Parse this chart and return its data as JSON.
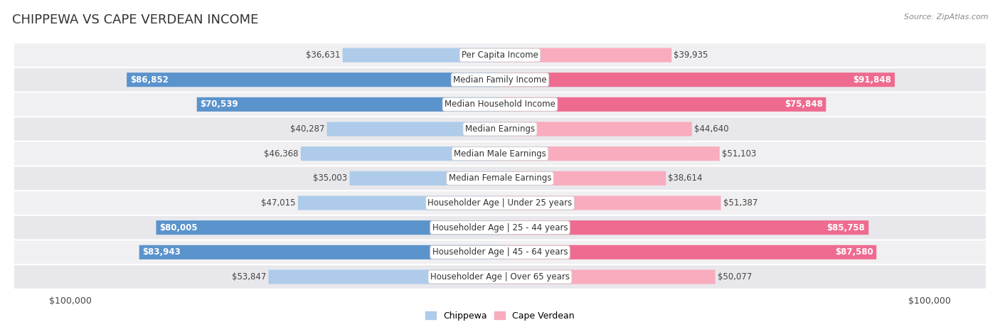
{
  "title": "CHIPPEWA VS CAPE VERDEAN INCOME",
  "source": "Source: ZipAtlas.com",
  "categories": [
    "Per Capita Income",
    "Median Family Income",
    "Median Household Income",
    "Median Earnings",
    "Median Male Earnings",
    "Median Female Earnings",
    "Householder Age | Under 25 years",
    "Householder Age | 25 - 44 years",
    "Householder Age | 45 - 64 years",
    "Householder Age | Over 65 years"
  ],
  "chippewa_values": [
    36631,
    86852,
    70539,
    40287,
    46368,
    35003,
    47015,
    80005,
    83943,
    53847
  ],
  "capeverdean_values": [
    39935,
    91848,
    75848,
    44640,
    51103,
    38614,
    51387,
    85758,
    87580,
    50077
  ],
  "chippewa_color_light": "#AECBEA",
  "chippewa_color_strong": "#5B93CC",
  "capeverdean_color_light": "#F9ACBE",
  "capeverdean_color_strong": "#EE6B8F",
  "threshold": 65000,
  "max_value": 100000,
  "bar_height": 0.58,
  "row_bg_even": "#F0F0F2",
  "row_bg_odd": "#E8E8EC",
  "background_color": "#ffffff",
  "title_fontsize": 13,
  "cat_fontsize": 8.5,
  "value_fontsize": 8.5,
  "legend_fontsize": 9,
  "source_fontsize": 8,
  "axis_label_fontsize": 9
}
